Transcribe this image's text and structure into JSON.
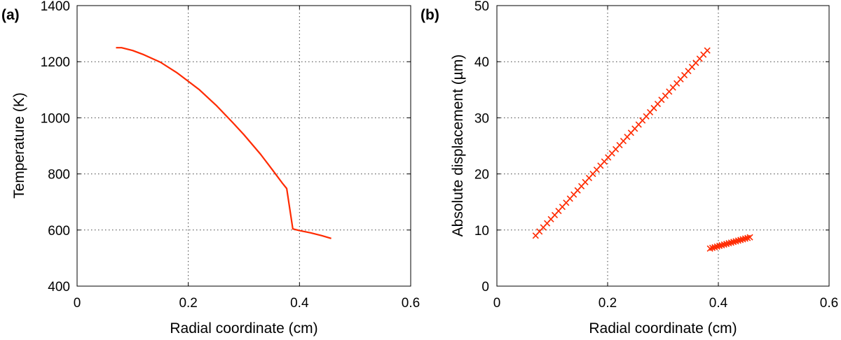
{
  "chart_data": [
    {
      "type": "line",
      "panel_label": "(a)",
      "xlabel": "Radial coordinate (cm)",
      "ylabel": "Temperature (K)",
      "xlim": [
        0,
        0.6
      ],
      "ylim": [
        400,
        1400
      ],
      "xticks": [
        0,
        0.2,
        0.4,
        0.6
      ],
      "xtick_labels": [
        "0",
        "0.2",
        "0.4",
        "0.6"
      ],
      "yticks": [
        400,
        600,
        800,
        1000,
        1200,
        1400
      ],
      "ytick_labels": [
        "400",
        "600",
        "800",
        "1000",
        "1200",
        "1400"
      ],
      "grid": true,
      "series": [
        {
          "color": "#ff2a00",
          "marker": "none",
          "x": [
            0.07,
            0.08,
            0.1,
            0.12,
            0.15,
            0.18,
            0.2,
            0.22,
            0.25,
            0.28,
            0.3,
            0.33,
            0.35,
            0.37,
            0.377,
            0.388,
            0.4,
            0.42,
            0.44,
            0.457
          ],
          "y": [
            1250,
            1250,
            1240,
            1225,
            1198,
            1160,
            1130,
            1100,
            1045,
            983,
            940,
            870,
            818,
            765,
            748,
            604,
            598,
            590,
            580,
            570
          ]
        }
      ]
    },
    {
      "type": "scatter",
      "panel_label": "(b)",
      "xlabel": "Radial coordinate (cm)",
      "ylabel": "Absolute displacement (µm)",
      "xlim": [
        0,
        0.6
      ],
      "ylim": [
        0,
        50
      ],
      "xticks": [
        0,
        0.2,
        0.4,
        0.6
      ],
      "xtick_labels": [
        "0",
        "0.2",
        "0.4",
        "0.6"
      ],
      "yticks": [
        0,
        10,
        20,
        30,
        40,
        50
      ],
      "ytick_labels": [
        "0",
        "10",
        "20",
        "30",
        "40",
        "50"
      ],
      "grid": true,
      "series": [
        {
          "color": "#ff2a00",
          "marker": "x",
          "x_start": 0.07,
          "x_end": 0.38,
          "y_start": 9.0,
          "y_end": 42.0,
          "count": 46
        },
        {
          "color": "#ff2a00",
          "marker": "x",
          "x_start": 0.385,
          "x_end": 0.457,
          "y_start": 6.7,
          "y_end": 8.7,
          "count": 18
        }
      ]
    }
  ]
}
